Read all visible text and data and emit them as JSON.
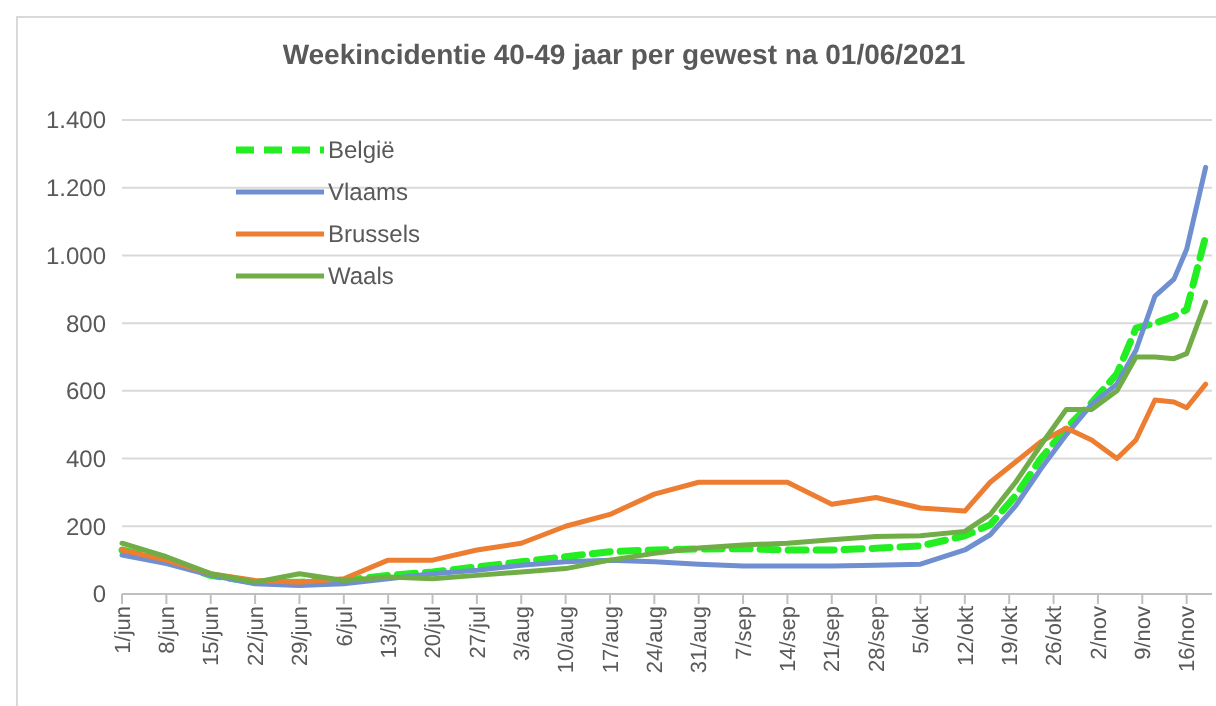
{
  "chart_data": {
    "type": "line",
    "title": "Weekincidentie  40-49 jaar per gewest na 01/06/2021",
    "x": [
      "2021-06-01",
      "2021-06-08",
      "2021-06-15",
      "2021-06-22",
      "2021-06-29",
      "2021-07-06",
      "2021-07-13",
      "2021-07-20",
      "2021-07-27",
      "2021-08-03",
      "2021-08-10",
      "2021-08-17",
      "2021-08-24",
      "2021-08-31",
      "2021-09-07",
      "2021-09-14",
      "2021-09-21",
      "2021-09-28",
      "2021-10-05",
      "2021-10-12",
      "2021-10-16",
      "2021-10-20",
      "2021-10-24",
      "2021-10-28",
      "2021-11-01",
      "2021-11-05",
      "2021-11-08",
      "2021-11-11",
      "2021-11-14",
      "2021-11-16",
      "2021-11-19"
    ],
    "series": [
      {
        "name": "België",
        "color": "#22ee22",
        "line_style": "dashed",
        "values": [
          130,
          100,
          55,
          35,
          35,
          40,
          55,
          65,
          80,
          95,
          110,
          125,
          130,
          133,
          134,
          130,
          130,
          135,
          142,
          172,
          205,
          290,
          400,
          490,
          565,
          650,
          785,
          800,
          820,
          840,
          1057
        ]
      },
      {
        "name": "Vlaams",
        "color": "#6f8fd1",
        "line_style": "solid",
        "values": [
          115,
          90,
          55,
          30,
          25,
          30,
          45,
          60,
          70,
          85,
          95,
          100,
          95,
          88,
          83,
          83,
          83,
          85,
          88,
          130,
          175,
          260,
          370,
          470,
          560,
          620,
          720,
          880,
          930,
          1018,
          1260
        ]
      },
      {
        "name": "Brussels",
        "color": "#ed7d31",
        "line_style": "solid",
        "values": [
          130,
          100,
          60,
          40,
          35,
          45,
          100,
          100,
          130,
          150,
          200,
          235,
          295,
          330,
          330,
          330,
          265,
          285,
          254,
          245,
          330,
          390,
          450,
          490,
          455,
          400,
          455,
          573,
          567,
          550,
          620
        ]
      },
      {
        "name": "Waals",
        "color": "#70ad47",
        "line_style": "solid",
        "values": [
          150,
          110,
          60,
          35,
          60,
          40,
          50,
          45,
          55,
          65,
          75,
          100,
          120,
          136,
          145,
          150,
          160,
          170,
          172,
          185,
          235,
          330,
          440,
          545,
          545,
          600,
          700,
          700,
          695,
          710,
          862
        ]
      }
    ],
    "xlim": [
      "2021-06-01",
      "2021-11-20"
    ],
    "xticks": [
      {
        "value": "2021-06-01",
        "label": "1/jun"
      },
      {
        "value": "2021-06-08",
        "label": "8/jun"
      },
      {
        "value": "2021-06-15",
        "label": "15/jun"
      },
      {
        "value": "2021-06-22",
        "label": "22/jun"
      },
      {
        "value": "2021-06-29",
        "label": "29/jun"
      },
      {
        "value": "2021-07-06",
        "label": "6/jul"
      },
      {
        "value": "2021-07-13",
        "label": "13/jul"
      },
      {
        "value": "2021-07-20",
        "label": "20/jul"
      },
      {
        "value": "2021-07-27",
        "label": "27/jul"
      },
      {
        "value": "2021-08-03",
        "label": "3/aug"
      },
      {
        "value": "2021-08-10",
        "label": "10/aug"
      },
      {
        "value": "2021-08-17",
        "label": "17/aug"
      },
      {
        "value": "2021-08-24",
        "label": "24/aug"
      },
      {
        "value": "2021-08-31",
        "label": "31/aug"
      },
      {
        "value": "2021-09-07",
        "label": "7/sep"
      },
      {
        "value": "2021-09-14",
        "label": "14/sep"
      },
      {
        "value": "2021-09-21",
        "label": "21/sep"
      },
      {
        "value": "2021-09-28",
        "label": "28/sep"
      },
      {
        "value": "2021-10-05",
        "label": "5/okt"
      },
      {
        "value": "2021-10-12",
        "label": "12/okt"
      },
      {
        "value": "2021-10-19",
        "label": "19/okt"
      },
      {
        "value": "2021-10-26",
        "label": "26/okt"
      },
      {
        "value": "2021-11-02",
        "label": "2/nov"
      },
      {
        "value": "2021-11-09",
        "label": "9/nov"
      },
      {
        "value": "2021-11-16",
        "label": "16/nov"
      }
    ],
    "ylim": [
      0,
      1400
    ],
    "yticks": [
      0,
      200,
      400,
      600,
      800,
      {
        "value": 1000,
        "label": "1.000"
      },
      {
        "value": 1200,
        "label": "1.200"
      },
      {
        "value": 1400,
        "label": "1.400"
      }
    ],
    "grid": "y",
    "legend": "top left",
    "marker": "none"
  }
}
